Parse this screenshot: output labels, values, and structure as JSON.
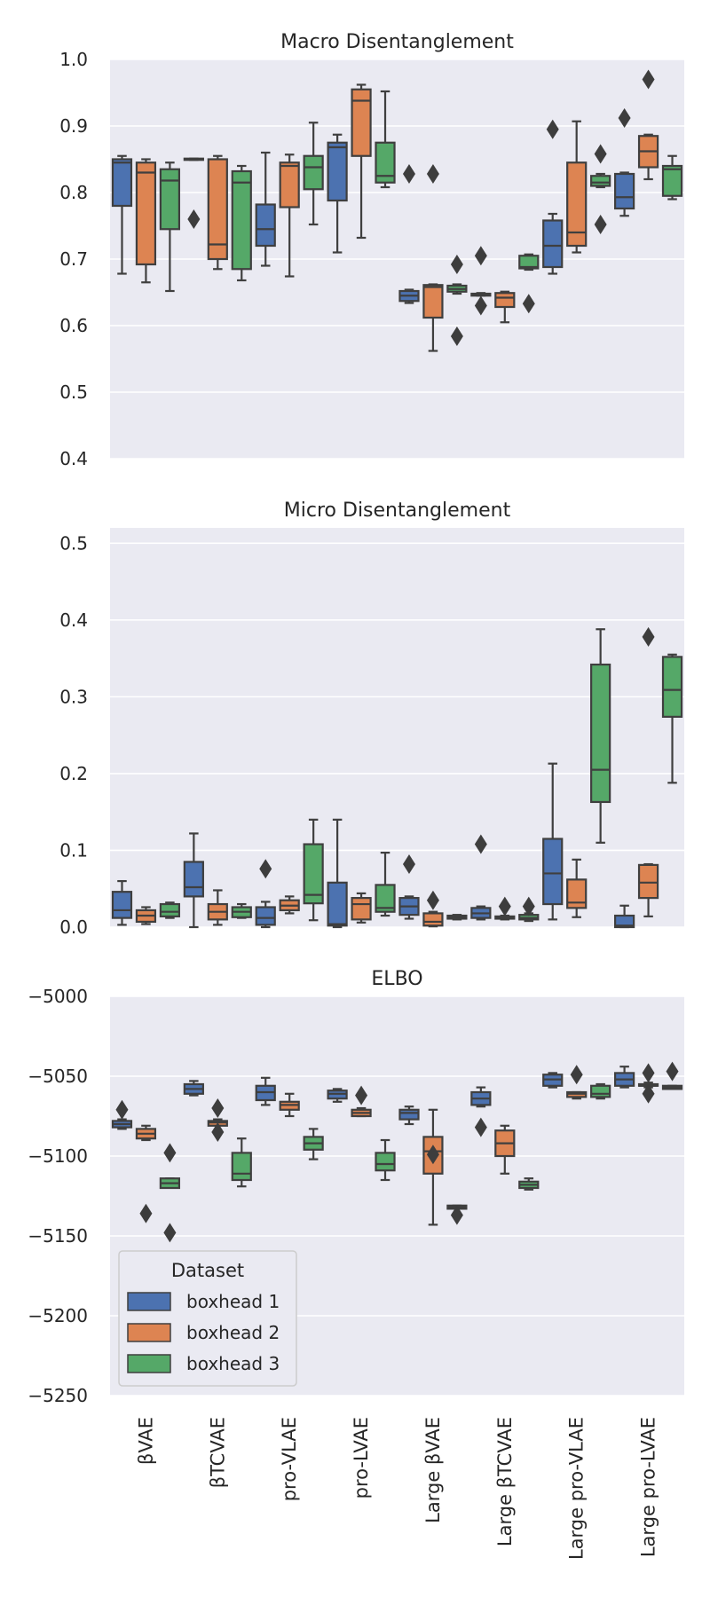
{
  "chart_data": {
    "type": "box",
    "categories": [
      "βVAE",
      "βTCVAE",
      "pro-VLAE",
      "pro-LVAE",
      "Large βVAE",
      "Large βTCVAE",
      "Large pro-VLAE",
      "Large pro-LVAE"
    ],
    "series_colors": [
      "#4c72b0",
      "#dd8452",
      "#55a868"
    ],
    "legend": {
      "title": "Dataset",
      "entries": [
        "boxhead 1",
        "boxhead 2",
        "boxhead 3"
      ],
      "placement": "lower-left of ELBO panel"
    },
    "panels": [
      {
        "title": "Macro Disentanglement",
        "ylim": [
          0.4,
          1.0
        ],
        "yticks": [
          0.4,
          0.5,
          0.6,
          0.7,
          0.8,
          0.9,
          1.0
        ],
        "ytick_labels": [
          "0.4",
          "0.5",
          "0.6",
          "0.7",
          "0.8",
          "0.9",
          "1.0"
        ],
        "boxes": [
          [
            {
              "wlo": 0.678,
              "q1": 0.78,
              "med": 0.845,
              "q3": 0.85,
              "whi": 0.855,
              "fliers": []
            },
            {
              "wlo": 0.665,
              "q1": 0.692,
              "med": 0.83,
              "q3": 0.845,
              "whi": 0.85,
              "fliers": []
            },
            {
              "wlo": 0.652,
              "q1": 0.745,
              "med": 0.818,
              "q3": 0.835,
              "whi": 0.845,
              "fliers": []
            }
          ],
          [
            {
              "wlo": 0.849,
              "q1": 0.849,
              "med": 0.85,
              "q3": 0.851,
              "whi": 0.851,
              "fliers": [
                0.76
              ]
            },
            {
              "wlo": 0.685,
              "q1": 0.7,
              "med": 0.722,
              "q3": 0.85,
              "whi": 0.855,
              "fliers": []
            },
            {
              "wlo": 0.668,
              "q1": 0.685,
              "med": 0.815,
              "q3": 0.832,
              "whi": 0.84,
              "fliers": []
            }
          ],
          [
            {
              "wlo": 0.69,
              "q1": 0.72,
              "med": 0.745,
              "q3": 0.782,
              "whi": 0.86,
              "fliers": []
            },
            {
              "wlo": 0.674,
              "q1": 0.778,
              "med": 0.84,
              "q3": 0.845,
              "whi": 0.857,
              "fliers": []
            },
            {
              "wlo": 0.752,
              "q1": 0.805,
              "med": 0.838,
              "q3": 0.855,
              "whi": 0.905,
              "fliers": []
            }
          ],
          [
            {
              "wlo": 0.71,
              "q1": 0.788,
              "med": 0.868,
              "q3": 0.875,
              "whi": 0.887,
              "fliers": []
            },
            {
              "wlo": 0.732,
              "q1": 0.855,
              "med": 0.938,
              "q3": 0.955,
              "whi": 0.962,
              "fliers": []
            },
            {
              "wlo": 0.808,
              "q1": 0.815,
              "med": 0.825,
              "q3": 0.875,
              "whi": 0.952,
              "fliers": []
            }
          ],
          [
            {
              "wlo": 0.634,
              "q1": 0.637,
              "med": 0.645,
              "q3": 0.652,
              "whi": 0.654,
              "fliers": [
                0.828
              ]
            },
            {
              "wlo": 0.562,
              "q1": 0.612,
              "med": 0.658,
              "q3": 0.661,
              "whi": 0.662,
              "fliers": [
                0.828
              ]
            },
            {
              "wlo": 0.648,
              "q1": 0.651,
              "med": 0.655,
              "q3": 0.66,
              "whi": 0.662,
              "fliers": [
                0.692,
                0.584
              ]
            }
          ],
          [
            {
              "wlo": 0.645,
              "q1": 0.645,
              "med": 0.647,
              "q3": 0.648,
              "whi": 0.649,
              "fliers": [
                0.705,
                0.63
              ]
            },
            {
              "wlo": 0.605,
              "q1": 0.628,
              "med": 0.642,
              "q3": 0.649,
              "whi": 0.651,
              "fliers": []
            },
            {
              "wlo": 0.684,
              "q1": 0.686,
              "med": 0.688,
              "q3": 0.705,
              "whi": 0.707,
              "fliers": [
                0.633
              ]
            }
          ],
          [
            {
              "wlo": 0.678,
              "q1": 0.688,
              "med": 0.72,
              "q3": 0.758,
              "whi": 0.768,
              "fliers": [
                0.895
              ]
            },
            {
              "wlo": 0.71,
              "q1": 0.72,
              "med": 0.74,
              "q3": 0.845,
              "whi": 0.907,
              "fliers": []
            },
            {
              "wlo": 0.808,
              "q1": 0.81,
              "med": 0.815,
              "q3": 0.825,
              "whi": 0.828,
              "fliers": [
                0.858,
                0.752
              ]
            }
          ],
          [
            {
              "wlo": 0.765,
              "q1": 0.776,
              "med": 0.793,
              "q3": 0.828,
              "whi": 0.83,
              "fliers": [
                0.912
              ]
            },
            {
              "wlo": 0.82,
              "q1": 0.838,
              "med": 0.862,
              "q3": 0.885,
              "whi": 0.887,
              "fliers": [
                0.97
              ]
            },
            {
              "wlo": 0.79,
              "q1": 0.795,
              "med": 0.835,
              "q3": 0.84,
              "whi": 0.855,
              "fliers": []
            }
          ]
        ]
      },
      {
        "title": "Micro Disentanglement",
        "ylim": [
          0.0,
          0.52
        ],
        "yticks": [
          0.0,
          0.1,
          0.2,
          0.3,
          0.4,
          0.5
        ],
        "ytick_labels": [
          "0.0",
          "0.1",
          "0.2",
          "0.3",
          "0.4",
          "0.5"
        ],
        "boxes": [
          [
            {
              "wlo": 0.003,
              "q1": 0.012,
              "med": 0.022,
              "q3": 0.046,
              "whi": 0.06,
              "fliers": []
            },
            {
              "wlo": 0.004,
              "q1": 0.007,
              "med": 0.015,
              "q3": 0.022,
              "whi": 0.026,
              "fliers": []
            },
            {
              "wlo": 0.012,
              "q1": 0.014,
              "med": 0.02,
              "q3": 0.03,
              "whi": 0.032,
              "fliers": []
            }
          ],
          [
            {
              "wlo": 0.0,
              "q1": 0.04,
              "med": 0.052,
              "q3": 0.085,
              "whi": 0.122,
              "fliers": []
            },
            {
              "wlo": 0.003,
              "q1": 0.01,
              "med": 0.02,
              "q3": 0.03,
              "whi": 0.048,
              "fliers": []
            },
            {
              "wlo": 0.012,
              "q1": 0.013,
              "med": 0.02,
              "q3": 0.026,
              "whi": 0.03,
              "fliers": []
            }
          ],
          [
            {
              "wlo": 0.0,
              "q1": 0.003,
              "med": 0.012,
              "q3": 0.026,
              "whi": 0.033,
              "fliers": [
                0.076
              ]
            },
            {
              "wlo": 0.018,
              "q1": 0.022,
              "med": 0.028,
              "q3": 0.035,
              "whi": 0.04,
              "fliers": []
            },
            {
              "wlo": 0.009,
              "q1": 0.031,
              "med": 0.042,
              "q3": 0.108,
              "whi": 0.14,
              "fliers": []
            }
          ],
          [
            {
              "wlo": 0.0,
              "q1": 0.002,
              "med": 0.004,
              "q3": 0.058,
              "whi": 0.14,
              "fliers": []
            },
            {
              "wlo": 0.006,
              "q1": 0.01,
              "med": 0.03,
              "q3": 0.038,
              "whi": 0.044,
              "fliers": []
            },
            {
              "wlo": 0.015,
              "q1": 0.02,
              "med": 0.025,
              "q3": 0.055,
              "whi": 0.097,
              "fliers": []
            }
          ],
          [
            {
              "wlo": 0.011,
              "q1": 0.016,
              "med": 0.027,
              "q3": 0.038,
              "whi": 0.04,
              "fliers": [
                0.082
              ]
            },
            {
              "wlo": 0.001,
              "q1": 0.002,
              "med": 0.007,
              "q3": 0.018,
              "whi": 0.02,
              "fliers": [
                0.035
              ]
            },
            {
              "wlo": 0.01,
              "q1": 0.011,
              "med": 0.013,
              "q3": 0.015,
              "whi": 0.016,
              "fliers": []
            }
          ],
          [
            {
              "wlo": 0.01,
              "q1": 0.012,
              "med": 0.018,
              "q3": 0.025,
              "whi": 0.027,
              "fliers": [
                0.108
              ]
            },
            {
              "wlo": 0.01,
              "q1": 0.011,
              "med": 0.012,
              "q3": 0.014,
              "whi": 0.015,
              "fliers": [
                0.027
              ]
            },
            {
              "wlo": 0.008,
              "q1": 0.01,
              "med": 0.012,
              "q3": 0.016,
              "whi": 0.018,
              "fliers": [
                0.027
              ]
            }
          ],
          [
            {
              "wlo": 0.01,
              "q1": 0.03,
              "med": 0.07,
              "q3": 0.115,
              "whi": 0.213,
              "fliers": []
            },
            {
              "wlo": 0.013,
              "q1": 0.025,
              "med": 0.032,
              "q3": 0.062,
              "whi": 0.088,
              "fliers": []
            },
            {
              "wlo": 0.11,
              "q1": 0.163,
              "med": 0.205,
              "q3": 0.342,
              "whi": 0.388,
              "fliers": []
            }
          ],
          [
            {
              "wlo": 0.0,
              "q1": 0.0,
              "med": 0.002,
              "q3": 0.015,
              "whi": 0.028,
              "fliers": []
            },
            {
              "wlo": 0.014,
              "q1": 0.038,
              "med": 0.058,
              "q3": 0.081,
              "whi": 0.082,
              "fliers": [
                0.378
              ]
            },
            {
              "wlo": 0.188,
              "q1": 0.274,
              "med": 0.309,
              "q3": 0.352,
              "whi": 0.355,
              "fliers": []
            }
          ]
        ]
      },
      {
        "title": "ELBO",
        "ylim": [
          -5250,
          -5000
        ],
        "yticks": [
          -5250,
          -5200,
          -5150,
          -5100,
          -5050,
          -5000
        ],
        "ytick_labels": [
          "−5250",
          "−5200",
          "−5150",
          "−5100",
          "−5050",
          "−5000"
        ],
        "boxes": [
          [
            {
              "wlo": -5083,
              "q1": -5082,
              "med": -5080,
              "q3": -5078,
              "whi": -5077,
              "fliers": [
                -5071
              ]
            },
            {
              "wlo": -5090,
              "q1": -5089,
              "med": -5086,
              "q3": -5083,
              "whi": -5081,
              "fliers": [
                -5136
              ]
            },
            {
              "wlo": -5119,
              "q1": -5120,
              "med": -5117,
              "q3": -5114,
              "whi": -5114,
              "fliers": [
                -5098,
                -5148
              ]
            }
          ],
          [
            {
              "wlo": -5062,
              "q1": -5061,
              "med": -5058,
              "q3": -5055,
              "whi": -5053,
              "fliers": []
            },
            {
              "wlo": -5080,
              "q1": -5081,
              "med": -5079,
              "q3": -5078,
              "whi": -5077,
              "fliers": [
                -5070,
                -5085
              ]
            },
            {
              "wlo": -5119,
              "q1": -5115,
              "med": -5111,
              "q3": -5098,
              "whi": -5089,
              "fliers": []
            }
          ],
          [
            {
              "wlo": -5068,
              "q1": -5065,
              "med": -5060,
              "q3": -5056,
              "whi": -5051,
              "fliers": []
            },
            {
              "wlo": -5075,
              "q1": -5071,
              "med": -5068,
              "q3": -5066,
              "whi": -5061,
              "fliers": []
            },
            {
              "wlo": -5102,
              "q1": -5096,
              "med": -5092,
              "q3": -5088,
              "whi": -5083,
              "fliers": []
            }
          ],
          [
            {
              "wlo": -5066,
              "q1": -5064,
              "med": -5061,
              "q3": -5059,
              "whi": -5058,
              "fliers": []
            },
            {
              "wlo": -5075,
              "q1": -5075,
              "med": -5073,
              "q3": -5071,
              "whi": -5070,
              "fliers": [
                -5062
              ]
            },
            {
              "wlo": -5115,
              "q1": -5109,
              "med": -5105,
              "q3": -5098,
              "whi": -5090,
              "fliers": []
            }
          ],
          [
            {
              "wlo": -5080,
              "q1": -5077,
              "med": -5073,
              "q3": -5071,
              "whi": -5069,
              "fliers": []
            },
            {
              "wlo": -5143,
              "q1": -5111,
              "med": -5097,
              "q3": -5088,
              "whi": -5071,
              "fliers": [
                -5099
              ]
            },
            {
              "wlo": -5133,
              "q1": -5133,
              "med": -5132,
              "q3": -5131,
              "whi": -5131,
              "fliers": [
                -5137
              ]
            }
          ],
          [
            {
              "wlo": -5069,
              "q1": -5068,
              "med": -5064,
              "q3": -5060,
              "whi": -5057,
              "fliers": [
                -5082
              ]
            },
            {
              "wlo": -5111,
              "q1": -5100,
              "med": -5092,
              "q3": -5084,
              "whi": -5081,
              "fliers": []
            },
            {
              "wlo": -5121,
              "q1": -5120,
              "med": -5118,
              "q3": -5116,
              "whi": -5114,
              "fliers": []
            }
          ],
          [
            {
              "wlo": -5057,
              "q1": -5056,
              "med": -5052,
              "q3": -5049,
              "whi": -5048,
              "fliers": []
            },
            {
              "wlo": -5064,
              "q1": -5063,
              "med": -5061,
              "q3": -5060,
              "whi": -5060,
              "fliers": [
                -5049
              ]
            },
            {
              "wlo": -5064,
              "q1": -5063,
              "med": -5061,
              "q3": -5056,
              "whi": -5055,
              "fliers": []
            }
          ],
          [
            {
              "wlo": -5057,
              "q1": -5056,
              "med": -5052,
              "q3": -5048,
              "whi": -5044,
              "fliers": []
            },
            {
              "wlo": -5057,
              "q1": -5056,
              "med": -5056,
              "q3": -5055,
              "whi": -5054,
              "fliers": [
                -5048,
                -5061
              ]
            },
            {
              "wlo": -5058,
              "q1": -5058,
              "med": -5057,
              "q3": -5056,
              "whi": -5056,
              "fliers": [
                -5047
              ]
            }
          ]
        ]
      }
    ]
  }
}
